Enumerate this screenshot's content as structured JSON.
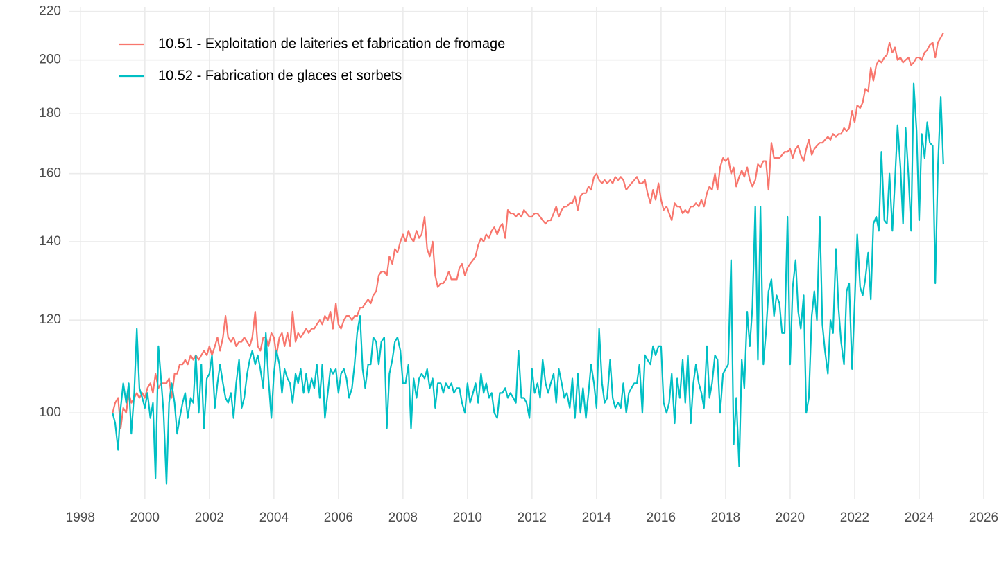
{
  "chart_data": {
    "type": "line",
    "y_log": true,
    "grid": true,
    "legend_position": "top-left",
    "xlim": [
      1997.66,
      2026.13
    ],
    "xticks": [
      1998,
      2000,
      2002,
      2004,
      2006,
      2008,
      2010,
      2012,
      2014,
      2016,
      2018,
      2020,
      2022,
      2024,
      2026
    ],
    "ylim": [
      84.5,
      222
    ],
    "yticks": [
      100,
      120,
      140,
      160,
      180,
      200,
      220
    ],
    "x": [
      1999,
      1999.08,
      1999.17,
      1999.25,
      1999.33,
      1999.42,
      1999.5,
      1999.58,
      1999.67,
      1999.75,
      1999.83,
      1999.92,
      2000,
      2000.08,
      2000.17,
      2000.25,
      2000.33,
      2000.42,
      2000.5,
      2000.58,
      2000.67,
      2000.75,
      2000.83,
      2000.92,
      2001,
      2001.08,
      2001.17,
      2001.25,
      2001.33,
      2001.42,
      2001.5,
      2001.58,
      2001.67,
      2001.75,
      2001.83,
      2001.92,
      2002,
      2002.08,
      2002.17,
      2002.25,
      2002.33,
      2002.42,
      2002.5,
      2002.58,
      2002.67,
      2002.75,
      2002.83,
      2002.92,
      2003,
      2003.08,
      2003.17,
      2003.25,
      2003.33,
      2003.42,
      2003.5,
      2003.58,
      2003.67,
      2003.75,
      2003.83,
      2003.92,
      2004,
      2004.08,
      2004.17,
      2004.25,
      2004.33,
      2004.42,
      2004.5,
      2004.58,
      2004.67,
      2004.75,
      2004.83,
      2004.92,
      2005,
      2005.08,
      2005.17,
      2005.25,
      2005.33,
      2005.42,
      2005.5,
      2005.58,
      2005.67,
      2005.75,
      2005.83,
      2005.92,
      2006,
      2006.08,
      2006.17,
      2006.25,
      2006.33,
      2006.42,
      2006.5,
      2006.58,
      2006.67,
      2006.75,
      2006.83,
      2006.92,
      2007,
      2007.08,
      2007.17,
      2007.25,
      2007.33,
      2007.42,
      2007.5,
      2007.58,
      2007.67,
      2007.75,
      2007.83,
      2007.92,
      2008,
      2008.08,
      2008.17,
      2008.25,
      2008.33,
      2008.42,
      2008.5,
      2008.58,
      2008.67,
      2008.75,
      2008.83,
      2008.92,
      2009,
      2009.08,
      2009.17,
      2009.25,
      2009.33,
      2009.42,
      2009.5,
      2009.58,
      2009.67,
      2009.75,
      2009.83,
      2009.92,
      2010,
      2010.08,
      2010.17,
      2010.25,
      2010.33,
      2010.42,
      2010.5,
      2010.58,
      2010.67,
      2010.75,
      2010.83,
      2010.92,
      2011,
      2011.08,
      2011.17,
      2011.25,
      2011.33,
      2011.42,
      2011.5,
      2011.58,
      2011.67,
      2011.75,
      2011.83,
      2011.92,
      2012,
      2012.08,
      2012.17,
      2012.25,
      2012.33,
      2012.42,
      2012.5,
      2012.58,
      2012.67,
      2012.75,
      2012.83,
      2012.92,
      2013,
      2013.08,
      2013.17,
      2013.25,
      2013.33,
      2013.42,
      2013.5,
      2013.58,
      2013.67,
      2013.75,
      2013.83,
      2013.92,
      2014,
      2014.08,
      2014.17,
      2014.25,
      2014.33,
      2014.42,
      2014.5,
      2014.58,
      2014.67,
      2014.75,
      2014.83,
      2014.92,
      2015,
      2015.08,
      2015.17,
      2015.25,
      2015.33,
      2015.42,
      2015.5,
      2015.58,
      2015.67,
      2015.75,
      2015.83,
      2015.92,
      2016,
      2016.08,
      2016.17,
      2016.25,
      2016.33,
      2016.42,
      2016.5,
      2016.58,
      2016.67,
      2016.75,
      2016.83,
      2016.92,
      2017,
      2017.08,
      2017.17,
      2017.25,
      2017.33,
      2017.42,
      2017.5,
      2017.58,
      2017.67,
      2017.75,
      2017.83,
      2017.92,
      2018,
      2018.08,
      2018.17,
      2018.25,
      2018.33,
      2018.42,
      2018.5,
      2018.58,
      2018.67,
      2018.75,
      2018.83,
      2018.92,
      2019,
      2019.08,
      2019.17,
      2019.25,
      2019.33,
      2019.42,
      2019.5,
      2019.58,
      2019.67,
      2019.75,
      2019.83,
      2019.92,
      2020,
      2020.08,
      2020.17,
      2020.25,
      2020.33,
      2020.42,
      2020.5,
      2020.58,
      2020.67,
      2020.75,
      2020.83,
      2020.92,
      2021,
      2021.08,
      2021.17,
      2021.25,
      2021.33,
      2021.42,
      2021.5,
      2021.58,
      2021.67,
      2021.75,
      2021.83,
      2021.92,
      2022,
      2022.08,
      2022.17,
      2022.25,
      2022.33,
      2022.42,
      2022.5,
      2022.58,
      2022.67,
      2022.75,
      2022.83,
      2022.92,
      2023,
      2023.08,
      2023.17,
      2023.25,
      2023.33,
      2023.42,
      2023.5,
      2023.58,
      2023.67,
      2023.75,
      2023.83,
      2023.92,
      2024,
      2024.08,
      2024.17,
      2024.25,
      2024.33,
      2024.42,
      2024.5,
      2024.58,
      2024.67,
      2024.75
    ],
    "series": [
      {
        "name": "10.51 - Exploitation de laiteries et fabrication de fromage",
        "color": "#F8766D",
        "values": [
          100,
          102,
          103,
          97,
          101,
          100,
          104,
          102,
          103,
          104,
          103,
          104,
          103,
          105,
          106,
          104,
          108,
          105,
          106,
          106,
          106,
          107,
          103,
          108,
          108,
          110,
          110,
          111,
          110,
          112,
          111,
          112,
          111,
          112,
          113,
          112,
          114,
          112,
          114,
          116,
          113,
          116,
          121,
          116,
          115,
          116,
          114,
          115,
          115,
          116,
          115,
          114,
          116,
          122,
          114,
          113,
          116,
          116,
          114,
          117,
          116,
          112,
          116,
          117,
          114,
          117,
          114,
          122,
          115,
          117,
          116,
          117,
          118,
          117,
          118,
          118,
          119,
          120,
          119,
          121,
          120,
          122,
          118,
          124,
          119,
          118,
          120,
          121,
          121,
          120,
          121,
          121,
          123,
          123,
          124,
          125,
          124,
          126,
          127,
          131,
          132,
          132,
          131,
          136,
          134,
          138,
          137,
          140,
          142,
          140,
          143,
          141,
          140,
          143,
          141,
          142,
          147,
          138,
          136,
          140,
          131,
          128,
          129,
          129,
          130,
          132,
          130,
          130,
          130,
          133,
          134,
          131,
          133,
          134,
          135,
          136,
          139,
          141,
          140,
          142,
          141,
          143,
          144,
          142,
          144,
          145,
          141,
          149,
          148,
          148,
          147,
          148,
          147,
          149,
          148,
          147,
          147,
          148,
          148,
          147,
          146,
          145,
          146,
          146,
          148,
          150,
          147,
          149,
          150,
          150,
          151,
          151,
          153,
          149,
          153,
          154,
          154,
          156,
          155,
          159,
          160,
          158,
          157,
          158,
          157,
          158,
          157,
          159,
          158,
          159,
          158,
          155,
          156,
          157,
          158,
          159,
          157,
          157,
          158,
          154,
          151,
          155,
          152,
          157,
          152,
          149,
          150,
          148,
          146,
          151,
          150,
          150,
          148,
          149,
          148,
          150,
          150,
          151,
          150,
          152,
          150,
          154,
          156,
          155,
          160,
          155,
          162,
          165,
          164,
          165,
          160,
          162,
          156,
          159,
          161,
          159,
          162,
          158,
          156,
          158,
          163,
          162,
          164,
          164,
          155,
          170,
          165,
          165,
          165,
          166,
          167,
          167,
          168,
          165,
          168,
          169,
          166,
          164,
          168,
          171,
          166,
          168,
          169,
          170,
          170,
          171,
          172,
          171,
          173,
          172,
          173,
          173,
          175,
          174,
          175,
          181,
          177,
          183,
          182,
          184,
          189,
          188,
          197,
          192,
          198,
          200,
          199,
          201,
          202,
          207,
          203,
          205,
          200,
          201,
          199,
          200,
          201,
          198,
          199,
          201,
          201,
          200,
          203,
          204,
          206,
          207,
          201,
          207,
          209,
          211
        ]
      },
      {
        "name": "10.52 - Fabrication de glaces et sorbets",
        "color": "#00BFC4",
        "values": [
          100,
          98,
          93,
          101,
          106,
          102,
          106,
          96,
          104,
          118,
          105,
          103,
          101,
          104,
          99,
          102,
          88,
          114,
          107,
          100,
          87,
          102,
          106,
          102,
          96,
          99,
          102,
          104,
          99,
          103,
          102,
          112,
          100,
          110,
          97,
          107,
          108,
          112,
          101,
          106,
          110,
          106,
          103,
          102,
          104,
          99,
          106,
          111,
          101,
          103,
          108,
          111,
          113,
          110,
          112,
          109,
          105,
          117,
          107,
          99,
          108,
          113,
          110,
          104,
          109,
          107,
          106,
          102,
          108,
          106,
          109,
          104,
          108,
          104,
          107,
          105,
          110,
          103,
          110,
          99,
          104,
          109,
          108,
          109,
          104,
          108,
          109,
          107,
          103,
          105,
          110,
          117,
          121,
          109,
          105,
          110,
          110,
          116,
          115,
          110,
          115,
          116,
          97,
          108,
          111,
          115,
          116,
          113,
          106,
          106,
          110,
          97,
          107,
          103,
          107,
          108,
          107,
          109,
          105,
          107,
          101,
          106,
          106,
          104,
          106,
          105,
          106,
          104,
          105,
          105,
          102,
          100,
          106,
          102,
          104,
          106,
          102,
          108,
          104,
          106,
          103,
          104,
          100,
          99,
          104,
          104,
          105,
          103,
          104,
          103,
          102,
          113,
          103,
          103,
          102,
          99,
          109,
          104,
          106,
          103,
          111,
          106,
          104,
          106,
          108,
          102,
          109,
          106,
          103,
          104,
          101,
          107,
          99,
          108,
          100,
          105,
          99,
          104,
          110,
          106,
          101,
          118,
          106,
          102,
          103,
          111,
          103,
          101,
          102,
          101,
          106,
          100,
          104,
          105,
          106,
          106,
          110,
          100,
          112,
          111,
          110,
          114,
          112,
          114,
          114,
          102,
          100,
          102,
          108,
          98,
          107,
          103,
          111,
          102,
          112,
          98,
          106,
          110,
          106,
          104,
          101,
          114,
          103,
          106,
          112,
          111,
          100,
          108,
          109,
          110,
          135,
          94,
          103,
          90,
          111,
          105,
          122,
          114,
          123,
          150,
          111,
          150,
          110,
          117,
          127,
          130,
          121,
          126,
          124,
          117,
          117,
          147,
          110,
          128,
          135,
          122,
          118,
          126,
          100,
          103,
          121,
          127,
          120,
          147,
          119,
          113,
          108,
          120,
          117,
          138,
          123,
          115,
          110,
          127,
          129,
          109,
          124,
          142,
          128,
          126,
          130,
          137,
          125,
          145,
          147,
          143,
          167,
          146,
          145,
          160,
          143,
          158,
          176,
          162,
          145,
          175,
          159,
          143,
          191,
          174,
          146,
          173,
          165,
          177,
          170,
          169,
          129,
          162,
          186,
          163
        ]
      }
    ]
  }
}
